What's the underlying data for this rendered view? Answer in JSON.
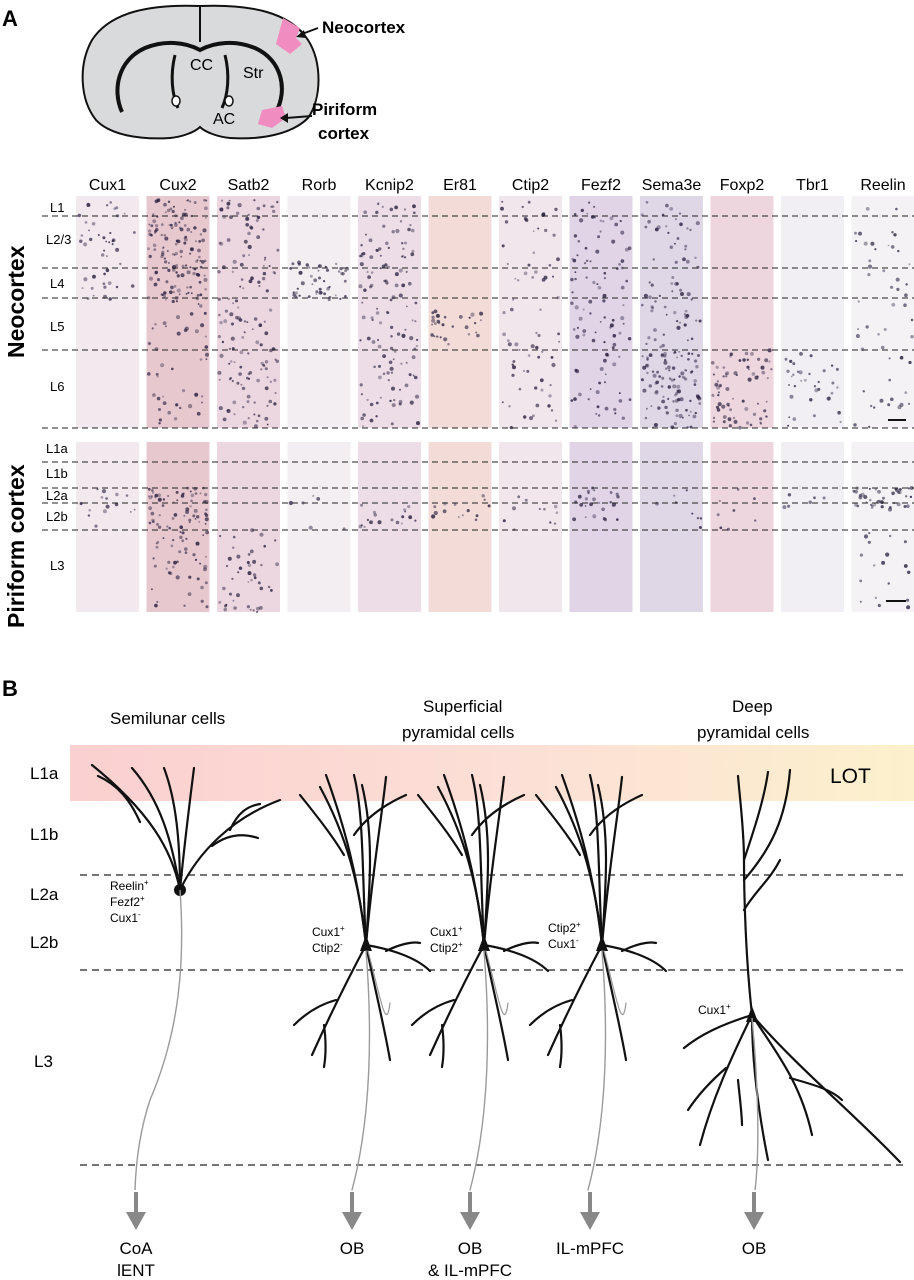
{
  "panel_a": {
    "letter": "A",
    "brain_labels": {
      "cc": "CC",
      "str": "Str",
      "ac": "AC"
    },
    "callout_neocortex": "Neocortex",
    "callout_piriform": [
      "Piriform",
      "cortex"
    ],
    "genes": [
      "Cux1",
      "Cux2",
      "Satb2",
      "Rorb",
      "Kcnip2",
      "Er81",
      "Ctip2",
      "Fezf2",
      "Sema3e",
      "Foxp2",
      "Tbr1",
      "Reelin"
    ],
    "neocortex_label": "Neocortex",
    "neocortex_layers": [
      "L1",
      "L2/3",
      "L4",
      "L5",
      "L6"
    ],
    "piriform_label": "Piriform cortex",
    "piriform_layers": [
      "L1a",
      "L1b",
      "L2a",
      "L2b",
      "L3"
    ],
    "colors": {
      "highlight": "#f08cc0",
      "brain_fill": "#d9dadb",
      "stain": "#2a2140"
    }
  },
  "panel_b": {
    "letter": "B",
    "layers": [
      "L1a",
      "L1b",
      "L2a",
      "L2b",
      "L3"
    ],
    "lot_label": "LOT",
    "groups": {
      "semilunar": [
        "Semilunar cells"
      ],
      "superficial": [
        "Superficial",
        "pyramidal cells"
      ],
      "deep": [
        "Deep",
        "pyramidal cells"
      ]
    },
    "cells": [
      {
        "markers": [
          {
            "name": "Reelin",
            "sign": "+"
          },
          {
            "name": "Fezf2",
            "sign": "+"
          },
          {
            "name": "Cux1",
            "sign": "-"
          }
        ],
        "target": [
          "CoA",
          "lENT"
        ]
      },
      {
        "markers": [
          {
            "name": "Cux1",
            "sign": "+"
          },
          {
            "name": "Ctip2",
            "sign": "-"
          }
        ],
        "target": [
          "OB"
        ]
      },
      {
        "markers": [
          {
            "name": "Cux1",
            "sign": "+"
          },
          {
            "name": "Ctip2",
            "sign": "+"
          }
        ],
        "target": [
          "OB",
          "& IL-mPFC"
        ]
      },
      {
        "markers": [
          {
            "name": "Ctip2",
            "sign": "+"
          },
          {
            "name": "Cux1",
            "sign": "-"
          }
        ],
        "target": [
          "IL-mPFC"
        ]
      },
      {
        "markers": [
          {
            "name": "Cux1",
            "sign": "+"
          }
        ],
        "target": [
          "OB"
        ]
      }
    ],
    "colors": {
      "lot_left": "#fbd3d3",
      "lot_right": "#fcf1cf",
      "arrow": "#888888",
      "axon": "#9a9a9a"
    }
  }
}
